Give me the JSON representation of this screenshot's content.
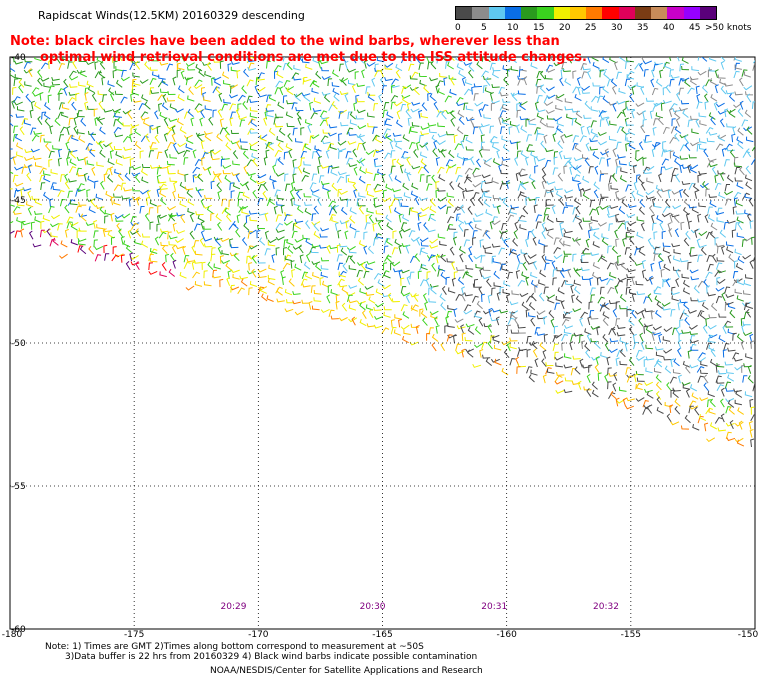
{
  "title": "Rapidscat Winds(12.5KM) 20160329 descending",
  "note": {
    "line1": "Note: black circles have been added to the wind barbs, wherever less than",
    "line2": "optimal wind retrieval conditions are met due to the ISS attitude changes."
  },
  "legend": {
    "unit_label": ">50 knots",
    "ticks": [
      "0",
      "5",
      "10",
      "15",
      "20",
      "25",
      "30",
      "35",
      "40",
      "45"
    ],
    "colors": [
      "#4a4a4a",
      "#8c8c8c",
      "#5fc8f0",
      "#0a6ee6",
      "#2a9a1e",
      "#3ad21e",
      "#f0f000",
      "#ffc800",
      "#ff7a00",
      "#ff0000",
      "#e0005a",
      "#7a3c14",
      "#c88c5a",
      "#c800c8",
      "#9600ff",
      "#5a007a"
    ]
  },
  "map": {
    "lon_range": [
      -180,
      -150
    ],
    "lat_range": [
      -60,
      -40
    ],
    "lon_ticks": [
      "-180",
      "-175",
      "-170",
      "-165",
      "-160",
      "-155",
      "-150"
    ],
    "lat_ticks": [
      "-40",
      "-45",
      "-50",
      "-55",
      "-60"
    ],
    "time_labels": [
      {
        "text": "20:29",
        "lon": -171
      },
      {
        "text": "20:30",
        "lon": -165.4
      },
      {
        "text": "20:31",
        "lon": -160.5
      },
      {
        "text": "20:32",
        "lon": -156
      }
    ],
    "grid_color": "#000000"
  },
  "footer": {
    "line1": "Note: 1) Times are GMT 2)Times along bottom correspond to measurement at ~50S",
    "line2": "3)Data buffer is 22 hrs from 20160329 4) Black wind barbs indicate possible contamination",
    "line3": "NOAA/NESDIS/Center for Satellite Applications and Research"
  }
}
